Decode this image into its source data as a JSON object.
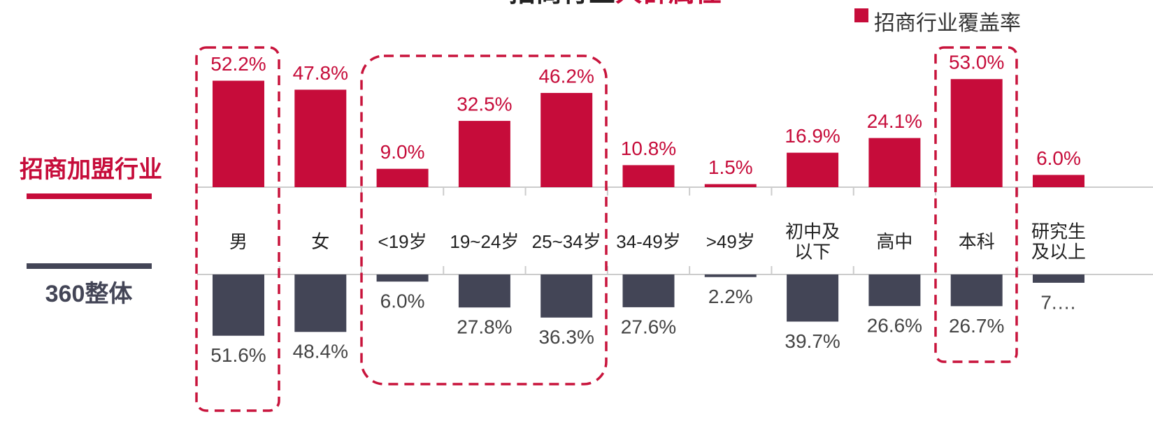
{
  "chart_data": {
    "type": "bar",
    "title": [
      "招商行业",
      "人群属性"
    ],
    "categories": [
      "男",
      "女",
      "<19岁",
      "19~24岁",
      "25~34岁",
      "34-49岁",
      ">49岁",
      "初中及\n以下",
      "高中",
      "本科",
      "研究生\n及以上"
    ],
    "row_labels": [
      "招商加盟行业",
      "360整体"
    ],
    "series": [
      {
        "name": "招商行业覆盖率",
        "color": "#c60c3a",
        "values": [
          52.2,
          47.8,
          9.0,
          32.5,
          46.2,
          10.8,
          1.5,
          16.9,
          24.1,
          53.0,
          6.0
        ],
        "value_labels": [
          "52.2%",
          "47.8%",
          "9.0%",
          "32.5%",
          "46.2%",
          "10.8%",
          "1.5%",
          "16.9%",
          "24.1%",
          "53.0%",
          "6.0%"
        ]
      },
      {
        "color": "#434556",
        "axis": "y2",
        "values": [
          51.6,
          48.4,
          6.0,
          27.8,
          36.3,
          27.6,
          2.2,
          39.7,
          26.6,
          26.7,
          7.0
        ],
        "value_labels": [
          "51.6%",
          "48.4%",
          "6.0%",
          "27.8%",
          "36.3%",
          "27.6%",
          "2.2%",
          "39.7%",
          "26.6%",
          "26.7%",
          "7.…"
        ]
      }
    ],
    "ylim": [
      0,
      55
    ],
    "y2lim": [
      0,
      55
    ]
  }
}
